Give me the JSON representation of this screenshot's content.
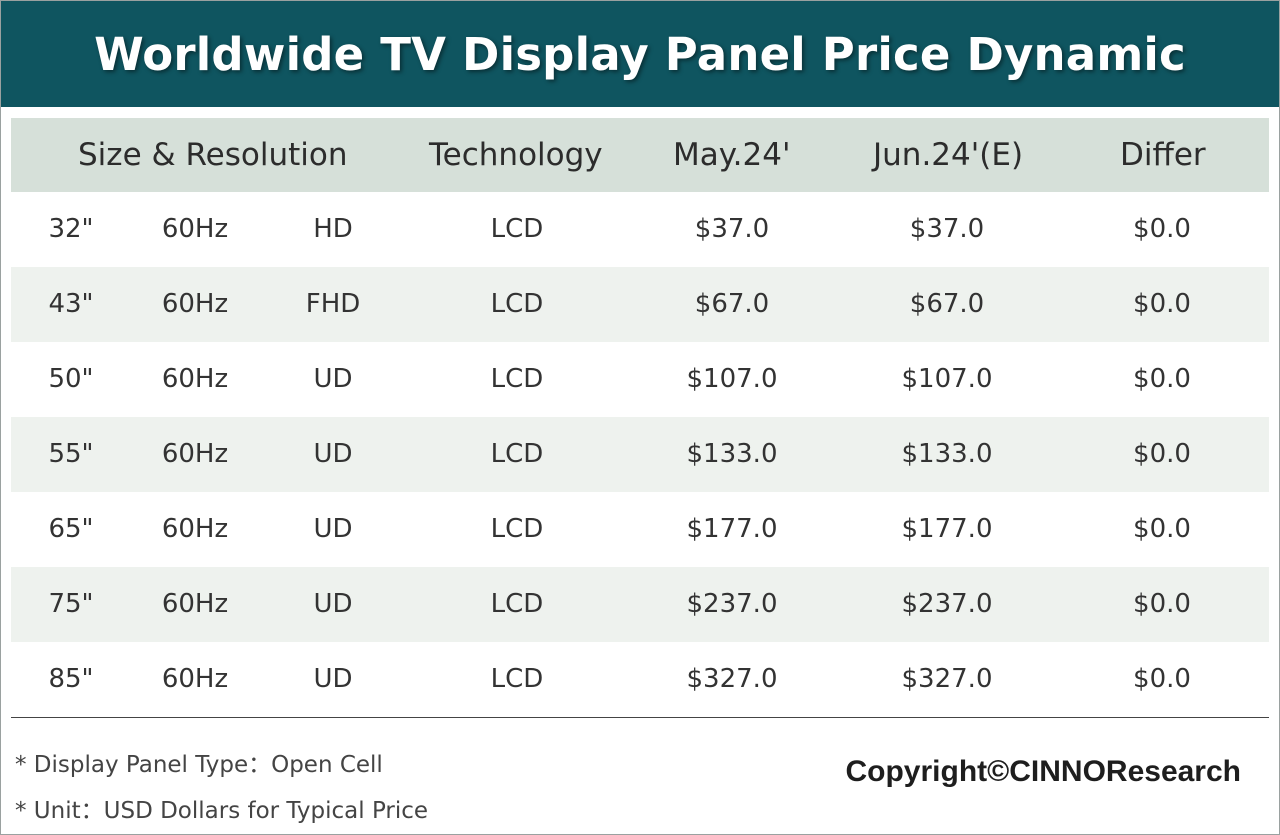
{
  "title": "Worldwide TV Display Panel Price Dynamic",
  "colors": {
    "title_bar": "#0f5560",
    "header_bg": "#d6e0d9",
    "alt_row_bg": "#eef2ee"
  },
  "chart_data": {
    "type": "table",
    "title": "Worldwide TV Display Panel Price Dynamic",
    "columns": [
      "Size & Resolution",
      "Technology",
      "May.24'",
      "Jun.24'(E)",
      "Differ"
    ],
    "rows": [
      {
        "size": "32\"",
        "refresh": "60Hz",
        "resolution": "HD",
        "technology": "LCD",
        "may": "$37.0",
        "jun": "$37.0",
        "differ": "$0.0"
      },
      {
        "size": "43\"",
        "refresh": "60Hz",
        "resolution": "FHD",
        "technology": "LCD",
        "may": "$67.0",
        "jun": "$67.0",
        "differ": "$0.0"
      },
      {
        "size": "50\"",
        "refresh": "60Hz",
        "resolution": "UD",
        "technology": "LCD",
        "may": "$107.0",
        "jun": "$107.0",
        "differ": "$0.0"
      },
      {
        "size": "55\"",
        "refresh": "60Hz",
        "resolution": "UD",
        "technology": "LCD",
        "may": "$133.0",
        "jun": "$133.0",
        "differ": "$0.0"
      },
      {
        "size": "65\"",
        "refresh": "60Hz",
        "resolution": "UD",
        "technology": "LCD",
        "may": "$177.0",
        "jun": "$177.0",
        "differ": "$0.0"
      },
      {
        "size": "75\"",
        "refresh": "60Hz",
        "resolution": "UD",
        "technology": "LCD",
        "may": "$237.0",
        "jun": "$237.0",
        "differ": "$0.0"
      },
      {
        "size": "85\"",
        "refresh": "60Hz",
        "resolution": "UD",
        "technology": "LCD",
        "may": "$327.0",
        "jun": "$327.0",
        "differ": "$0.0"
      }
    ]
  },
  "footnotes": [
    "* Display Panel Type：Open Cell",
    "* Unit：USD Dollars for Typical Price"
  ],
  "copyright": "Copyright©CINNOResearch"
}
